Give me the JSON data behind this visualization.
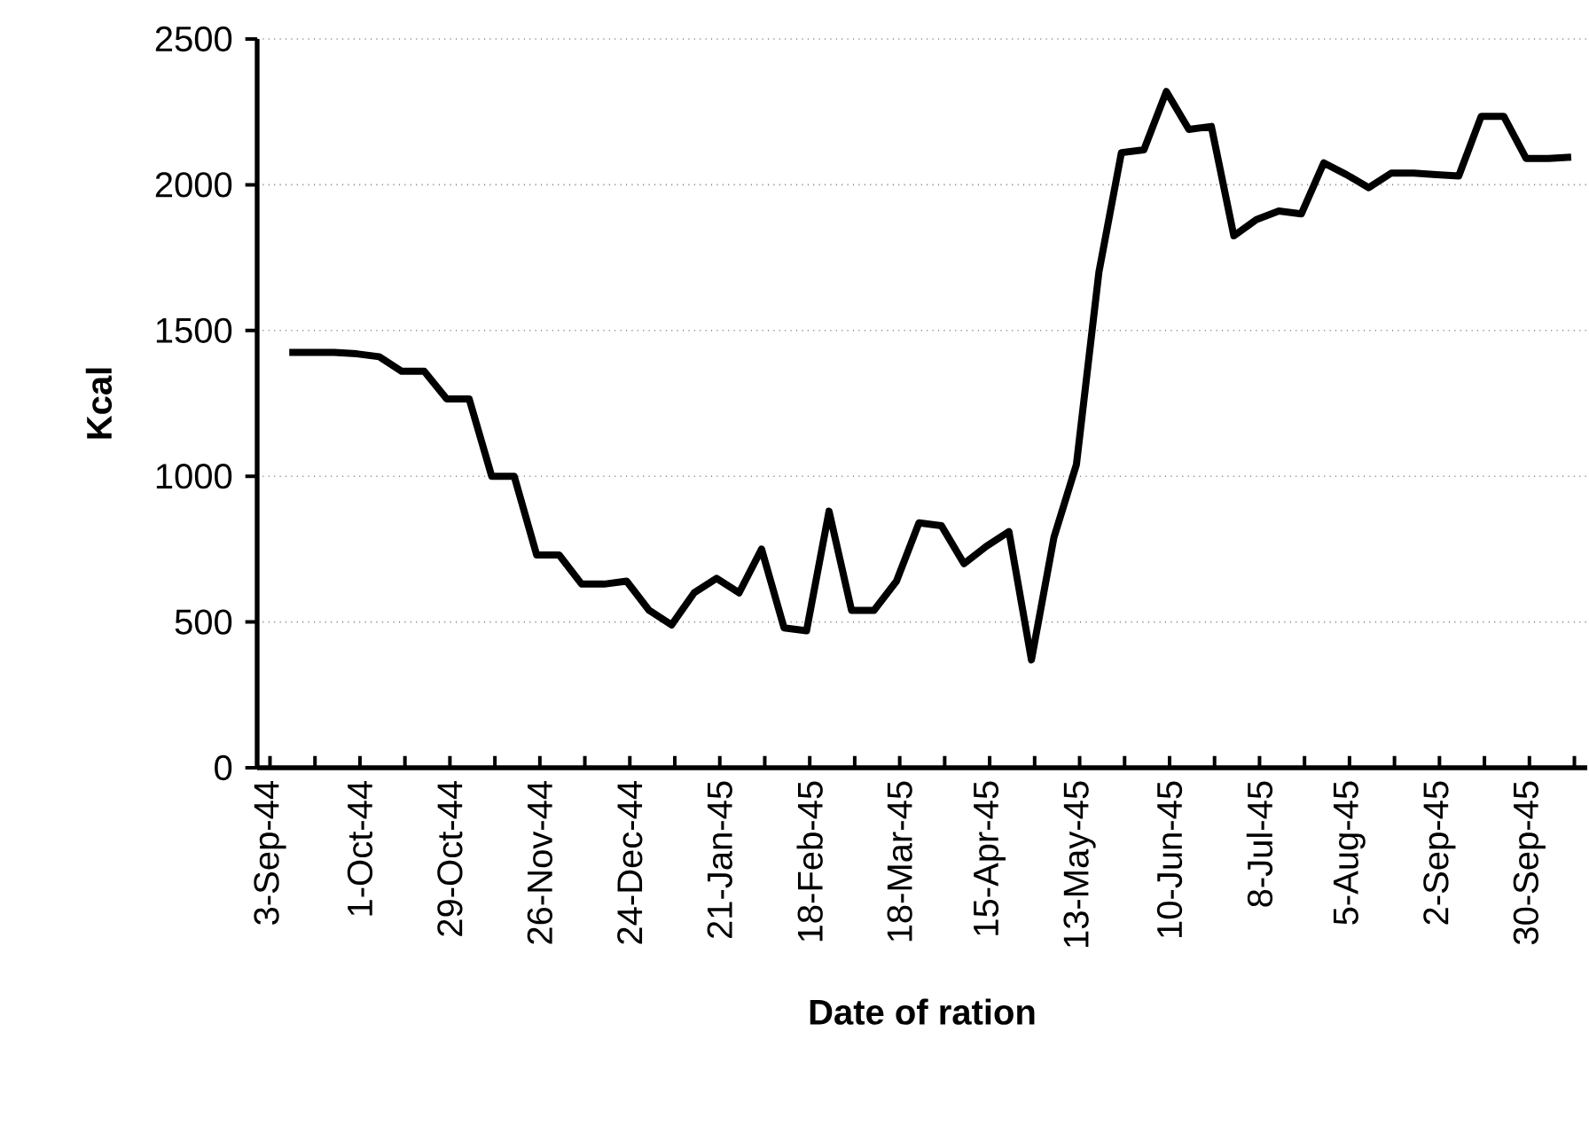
{
  "chart_data": {
    "type": "line",
    "xlabel": "Date of ration",
    "ylabel": "Kcal",
    "x": [
      "1944-09-09",
      "1944-09-16",
      "1944-09-23",
      "1944-09-30",
      "1944-10-07",
      "1944-10-14",
      "1944-10-21",
      "1944-10-28",
      "1944-11-04",
      "1944-11-11",
      "1944-11-18",
      "1944-11-25",
      "1944-12-02",
      "1944-12-09",
      "1944-12-16",
      "1944-12-23",
      "1944-12-30",
      "1945-01-06",
      "1945-01-13",
      "1945-01-20",
      "1945-01-27",
      "1945-02-03",
      "1945-02-10",
      "1945-02-17",
      "1945-02-24",
      "1945-03-03",
      "1945-03-10",
      "1945-03-17",
      "1945-03-24",
      "1945-03-31",
      "1945-04-07",
      "1945-04-14",
      "1945-04-21",
      "1945-04-28",
      "1945-05-05",
      "1945-05-12",
      "1945-05-19",
      "1945-05-26",
      "1945-06-02",
      "1945-06-09",
      "1945-06-16",
      "1945-06-23",
      "1945-06-30",
      "1945-07-07",
      "1945-07-14",
      "1945-07-21",
      "1945-07-28",
      "1945-08-04",
      "1945-08-11",
      "1945-08-18",
      "1945-08-25",
      "1945-09-01",
      "1945-09-08",
      "1945-09-15",
      "1945-09-22",
      "1945-09-29",
      "1945-10-06",
      "1945-10-13"
    ],
    "series": [
      {
        "color": "#000000",
        "values": [
          1425,
          1425,
          1425,
          1420,
          1410,
          1360,
          1360,
          1265,
          1265,
          1000,
          1000,
          730,
          730,
          630,
          630,
          640,
          540,
          490,
          600,
          650,
          600,
          750,
          480,
          470,
          880,
          540,
          540,
          640,
          840,
          830,
          700,
          760,
          810,
          370,
          790,
          1040,
          1700,
          2110,
          2120,
          2320,
          2190,
          2200,
          1825,
          1880,
          1910,
          1900,
          2075,
          2035,
          1990,
          2040,
          2040,
          2035,
          2030,
          2235,
          2235,
          2090,
          2090,
          2095
        ]
      }
    ],
    "xlim": [
      "1944-08-30",
      "1945-10-18"
    ],
    "xticks": [
      {
        "value": "1944-09-03",
        "label": "3-Sep-44"
      },
      {
        "value": "1944-09-17",
        "label": null
      },
      {
        "value": "1944-10-01",
        "label": "1-Oct-44"
      },
      {
        "value": "1944-10-15",
        "label": null
      },
      {
        "value": "1944-10-29",
        "label": "29-Oct-44"
      },
      {
        "value": "1944-11-12",
        "label": null
      },
      {
        "value": "1944-11-26",
        "label": "26-Nov-44"
      },
      {
        "value": "1944-12-10",
        "label": null
      },
      {
        "value": "1944-12-24",
        "label": "24-Dec-44"
      },
      {
        "value": "1945-01-07",
        "label": null
      },
      {
        "value": "1945-01-21",
        "label": "21-Jan-45"
      },
      {
        "value": "1945-02-04",
        "label": null
      },
      {
        "value": "1945-02-18",
        "label": "18-Feb-45"
      },
      {
        "value": "1945-03-04",
        "label": null
      },
      {
        "value": "1945-03-18",
        "label": "18-Mar-45"
      },
      {
        "value": "1945-04-01",
        "label": null
      },
      {
        "value": "1945-04-15",
        "label": "15-Apr-45"
      },
      {
        "value": "1945-04-29",
        "label": null
      },
      {
        "value": "1945-05-13",
        "label": "13-May-45"
      },
      {
        "value": "1945-05-27",
        "label": null
      },
      {
        "value": "1945-06-10",
        "label": "10-Jun-45"
      },
      {
        "value": "1945-06-24",
        "label": null
      },
      {
        "value": "1945-07-08",
        "label": "8-Jul-45"
      },
      {
        "value": "1945-07-22",
        "label": null
      },
      {
        "value": "1945-08-05",
        "label": "5-Aug-45"
      },
      {
        "value": "1945-08-19",
        "label": null
      },
      {
        "value": "1945-09-02",
        "label": "2-Sep-45"
      },
      {
        "value": "1945-09-16",
        "label": null
      },
      {
        "value": "1945-09-30",
        "label": "30-Sep-45"
      },
      {
        "value": "1945-10-14",
        "label": null
      }
    ],
    "ylim": [
      0,
      2500
    ],
    "yticks": [
      0,
      500,
      1000,
      1500,
      2000,
      2500
    ],
    "grid": "y",
    "legend": false,
    "marker": "none",
    "line_style": "solid"
  }
}
